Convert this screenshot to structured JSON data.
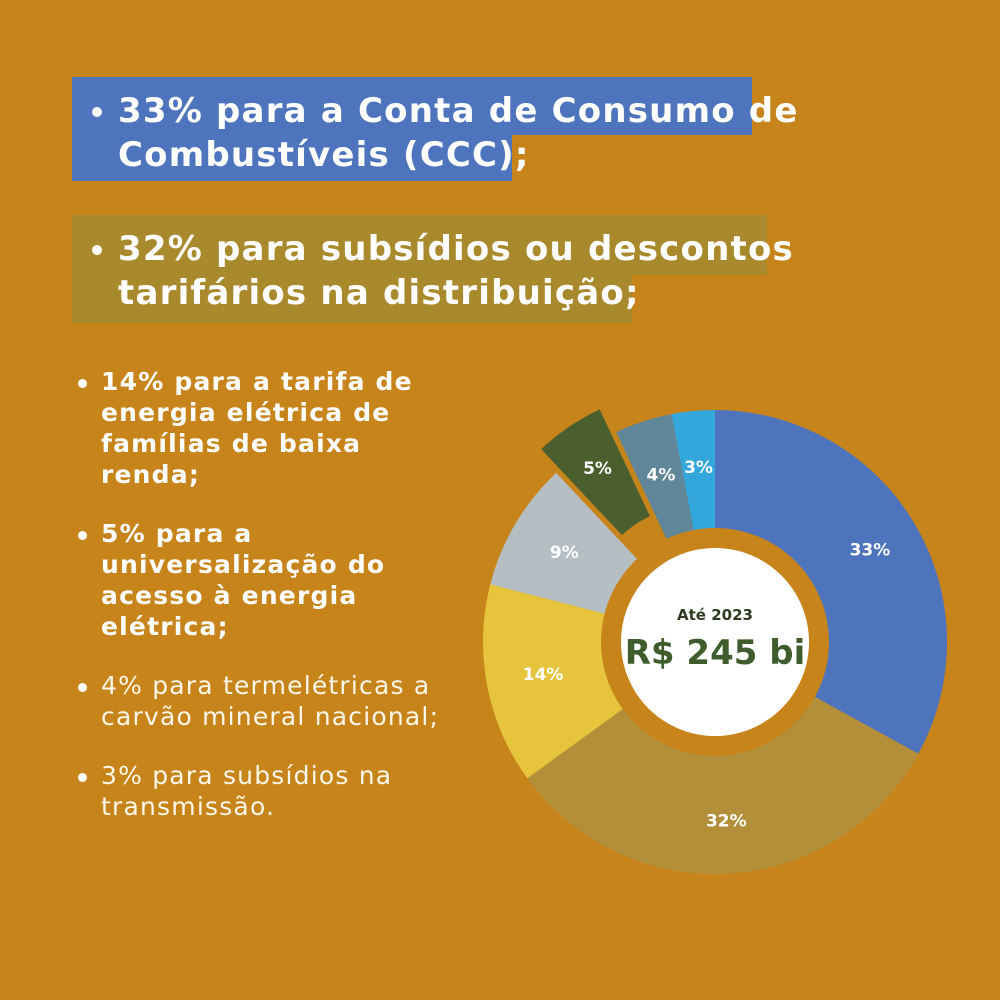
{
  "highlights": [
    {
      "text": "33% para a Conta de Consumo de Combustíveis (CCC);",
      "line1": "33% para a Conta de Consumo de",
      "line2": "Combustíveis (CCC);",
      "color": "#4E74BD"
    },
    {
      "text": "32% para subsídios ou descontos tarifários na distribuição;",
      "line1": "32% para subsídios ou descontos",
      "line2": "tarifários na distribuição;",
      "color": "#A88A2C"
    }
  ],
  "items": [
    {
      "text": "14% para a tarifa de energia elétrica de famílias de baixa renda;",
      "weight": "bold"
    },
    {
      "text": "5% para a universalização do acesso à energia elétrica;",
      "weight": "bold"
    },
    {
      "text": "4% para termelétricas a carvão mineral nacional;",
      "weight": "light"
    },
    {
      "text": "3% para subsídios na transmissão.",
      "weight": "light"
    }
  ],
  "chart_data": {
    "type": "pie",
    "donut": true,
    "center_label": "Até 2023",
    "center_value": "R$ 245 bi",
    "slices": [
      {
        "label": "33%",
        "value": 33,
        "color": "#4E74BD",
        "exploded": false
      },
      {
        "label": "32%",
        "value": 32,
        "color": "#B38F3A",
        "exploded": false
      },
      {
        "label": "14%",
        "value": 14,
        "color": "#E6C43C",
        "exploded": false
      },
      {
        "label": "9%",
        "value": 9,
        "color": "#B5BEC3",
        "exploded": false
      },
      {
        "label": "5%",
        "value": 5,
        "color": "#4B5E2E",
        "exploded": true
      },
      {
        "label": "4%",
        "value": 4,
        "color": "#5F8699",
        "exploded": false
      },
      {
        "label": "3%",
        "value": 3,
        "color": "#33A7DC",
        "exploded": false
      }
    ]
  },
  "colors": {
    "background": "#C7841B",
    "ring": "#C7841B",
    "center_fill": "#FFFFFF"
  }
}
